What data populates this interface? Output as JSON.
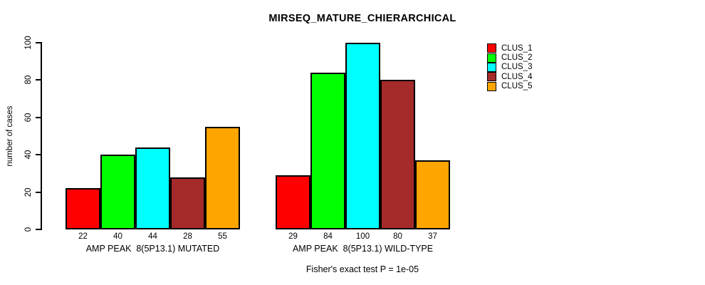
{
  "chart_data": {
    "type": "bar",
    "title": "MIRSEQ_MATURE_CHIERARCHICAL",
    "xlabel": "",
    "ylabel": "number of cases",
    "ylim": [
      0,
      100
    ],
    "yticks": [
      0,
      20,
      40,
      60,
      80,
      100
    ],
    "grid": false,
    "categories": [
      "AMP PEAK  8(5P13.1) MUTATED",
      "AMP PEAK  8(5P13.1) WILD-TYPE"
    ],
    "series": [
      {
        "name": "CLUS_1",
        "color": "#FF0000",
        "values": [
          22,
          29
        ]
      },
      {
        "name": "CLUS_2",
        "color": "#00FF00",
        "values": [
          40,
          84
        ]
      },
      {
        "name": "CLUS_3",
        "color": "#00FFFF",
        "values": [
          44,
          100
        ]
      },
      {
        "name": "CLUS_4",
        "color": "#A52A2A",
        "values": [
          28,
          80
        ]
      },
      {
        "name": "CLUS_5",
        "color": "#FFA500",
        "values": [
          55,
          37
        ]
      }
    ],
    "legend": {
      "position": "top-right",
      "entries": [
        "CLUS_1",
        "CLUS_2",
        "CLUS_3",
        "CLUS_4",
        "CLUS_5"
      ]
    },
    "annotation": "Fisher's exact test P = 1e-05"
  }
}
